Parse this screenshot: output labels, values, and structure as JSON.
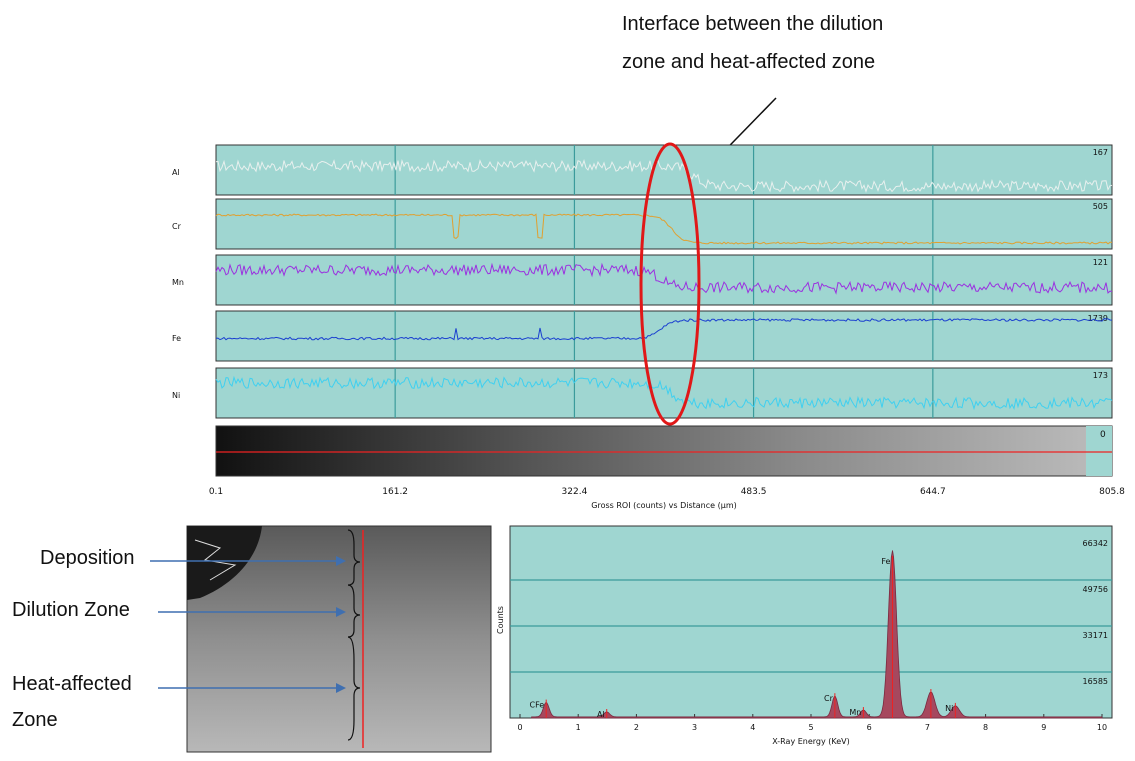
{
  "annotation": {
    "line1": "Interface between the dilution",
    "line2": "zone and heat-affected zone"
  },
  "linescan": {
    "xlabel": "Gross ROI (counts) vs Distance (µm)",
    "xticks": [
      "0.1",
      "161.2",
      "322.4",
      "483.5",
      "644.7",
      "805.8"
    ],
    "image_scale_max": "0",
    "colors": {
      "Al": "#e8f0ee",
      "Cr": "#e0a030",
      "Mn": "#9b30e0",
      "Fe": "#1a3fd0",
      "Ni": "#3fd0f0"
    }
  },
  "zones": {
    "deposition": "Deposition",
    "dilution": "Dilution Zone",
    "haz_line1": "Heat-affected",
    "haz_line2": "Zone"
  },
  "chart_data": [
    {
      "type": "line",
      "title": "",
      "xlabel": "Gross ROI (counts) vs Distance (µm)",
      "ylabel": "",
      "xlim": [
        0.1,
        805.8
      ],
      "xticks": [
        0.1,
        161.2,
        322.4,
        483.5,
        644.7,
        805.8
      ],
      "series": [
        {
          "name": "Al",
          "max": 167,
          "level_left": 0.58,
          "level_right": 0.18,
          "transition_x": 430
        },
        {
          "name": "Cr",
          "max": 505,
          "level_left": 0.68,
          "level_right": 0.12,
          "transition_x": 410
        },
        {
          "name": "Mn",
          "max": 121,
          "level_left": 0.7,
          "level_right": 0.35,
          "transition_x": 400
        },
        {
          "name": "Fe",
          "max": 1739,
          "level_left": 0.45,
          "level_right": 0.82,
          "transition_x": 400
        },
        {
          "name": "Ni",
          "max": 173,
          "level_left": 0.7,
          "level_right": 0.3,
          "transition_x": 410
        }
      ]
    },
    {
      "type": "bar",
      "title": "",
      "xlabel": "X-Ray Energy (KeV)",
      "ylabel": "Counts",
      "xlim": [
        0,
        10
      ],
      "xticks": [
        0,
        1,
        2,
        3,
        4,
        5,
        6,
        7,
        8,
        9,
        10
      ],
      "ylim": [
        0,
        66342
      ],
      "yticks": [
        16585,
        33171,
        49756,
        66342
      ],
      "peaks": [
        {
          "label": "CFe",
          "energy": 0.45,
          "counts": 5200
        },
        {
          "label": "Al",
          "energy": 1.49,
          "counts": 1800
        },
        {
          "label": "Cr",
          "energy": 5.41,
          "counts": 7500
        },
        {
          "label": "Mn",
          "energy": 5.9,
          "counts": 2500
        },
        {
          "label": "Fe",
          "energy": 6.4,
          "counts": 60000
        },
        {
          "label": "",
          "energy": 7.06,
          "counts": 9000
        },
        {
          "label": "Ni",
          "energy": 7.48,
          "counts": 4000
        }
      ]
    }
  ]
}
